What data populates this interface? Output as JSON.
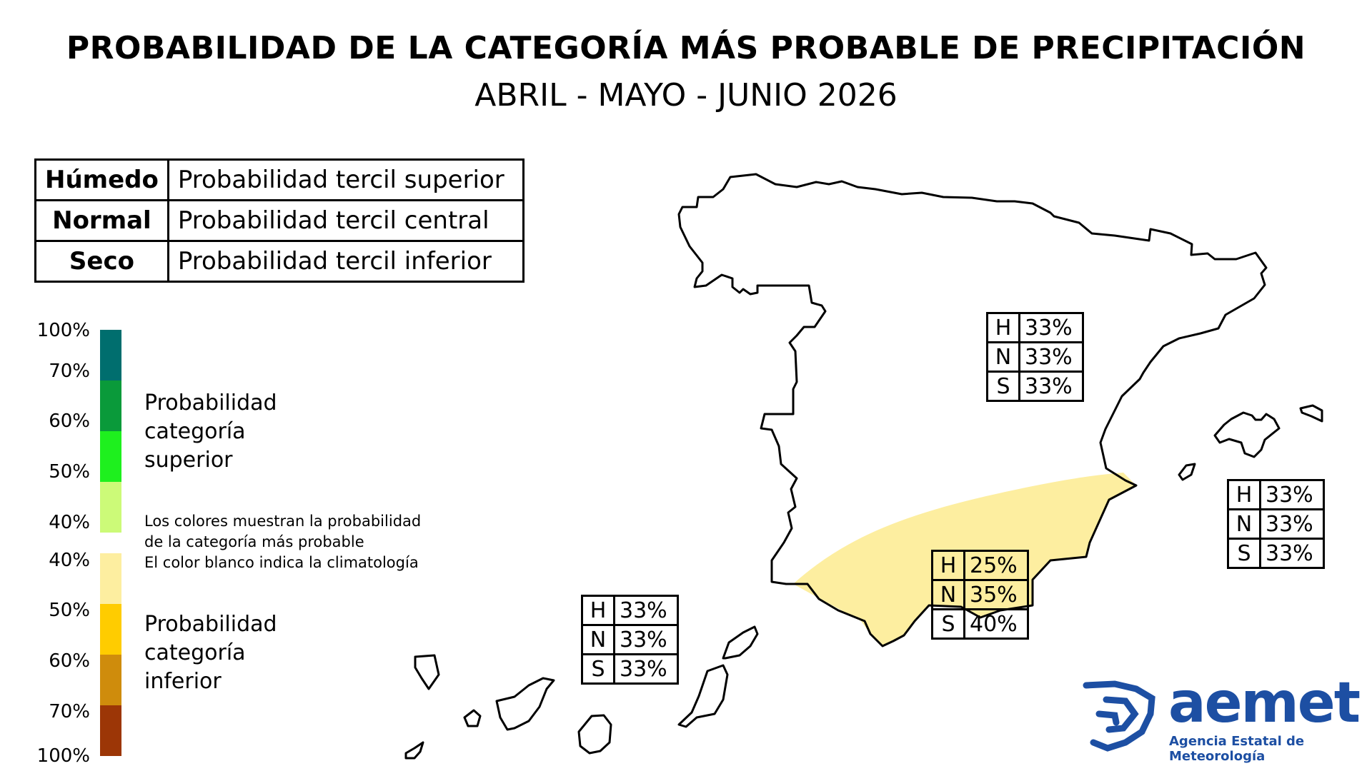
{
  "title": "PROBABILIDAD DE LA CATEGORÍA MÁS PROBABLE DE PRECIPITACIÓN",
  "subtitle": "ABRIL - MAYO - JUNIO 2026",
  "legend_table": [
    {
      "category": "Húmedo",
      "description": "Probabilidad tercil superior"
    },
    {
      "category": "Normal",
      "description": "Probabilidad tercil central"
    },
    {
      "category": "Seco",
      "description": "Probabilidad tercil inferior"
    }
  ],
  "scale": {
    "upper_labels": [
      "100%",
      "70%",
      "60%",
      "50%",
      "40%"
    ],
    "upper_colors": [
      "#006e6e",
      "#0a9a3a",
      "#1ef01e",
      "#ccfa78"
    ],
    "lower_labels": [
      "40%",
      "50%",
      "60%",
      "70%",
      "100%"
    ],
    "lower_colors": [
      "#fdeea0",
      "#ffcc00",
      "#cf8c0c",
      "#9c3606"
    ],
    "upper_title_lines": [
      "Probabilidad",
      "categoría",
      "superior"
    ],
    "lower_title_lines": [
      "Probabilidad",
      "categoría",
      "inferior"
    ],
    "note_lines": [
      "Los colores muestran la probabilidad",
      "de la categoría más probable",
      "El color blanco indica la climatología"
    ]
  },
  "regions": [
    {
      "name": "peninsula_norte",
      "values": [
        {
          "k": "H",
          "v": "33%"
        },
        {
          "k": "N",
          "v": "33%"
        },
        {
          "k": "S",
          "v": "33%"
        }
      ]
    },
    {
      "name": "baleares",
      "values": [
        {
          "k": "H",
          "v": "33%"
        },
        {
          "k": "N",
          "v": "33%"
        },
        {
          "k": "S",
          "v": "33%"
        }
      ]
    },
    {
      "name": "sureste",
      "values": [
        {
          "k": "H",
          "v": "25%"
        },
        {
          "k": "N",
          "v": "35%"
        },
        {
          "k": "S",
          "v": "40%"
        }
      ],
      "fill": "#fdeea0"
    },
    {
      "name": "canarias",
      "values": [
        {
          "k": "H",
          "v": "33%"
        },
        {
          "k": "N",
          "v": "33%"
        },
        {
          "k": "S",
          "v": "33%"
        }
      ]
    }
  ],
  "logo": {
    "word": "aemet",
    "subtitle": "Agencia Estatal de Meteorología",
    "color": "#1d4fa3"
  },
  "colors": {
    "outline": "#000000",
    "dry_zone": "#fdeea0"
  }
}
